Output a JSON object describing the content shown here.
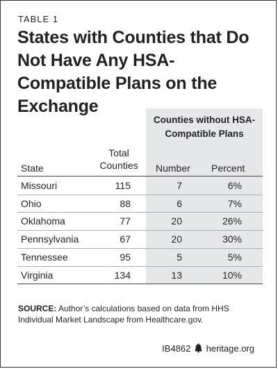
{
  "table_label": "TABLE 1",
  "title": "States with Counties that Do Not Have Any HSA-Compatible Plans on the Exchange",
  "chart_data": {
    "type": "table",
    "group_header": "Counties without HSA-Compatible Plans",
    "columns": [
      "State",
      "Total Counties",
      "Number",
      "Percent"
    ],
    "columns_lines": [
      "Total",
      "Counties"
    ],
    "rows": [
      {
        "state": "Missouri",
        "total": "115",
        "number": "7",
        "percent": "6%"
      },
      {
        "state": "Ohio",
        "total": "88",
        "number": "6",
        "percent": "7%"
      },
      {
        "state": "Oklahoma",
        "total": "77",
        "number": "20",
        "percent": "26%"
      },
      {
        "state": "Pennsylvania",
        "total": "67",
        "number": "20",
        "percent": "30%"
      },
      {
        "state": "Tennessee",
        "total": "95",
        "number": "5",
        "percent": "5%"
      },
      {
        "state": "Virginia",
        "total": "134",
        "number": "13",
        "percent": "10%"
      }
    ]
  },
  "source": {
    "label": "SOURCE:",
    "text": "Author’s calculations based on data from HHS Individual Market Landscape from Healthcare.gov."
  },
  "footer": {
    "code": "IB4862",
    "site": "heritage.org"
  }
}
